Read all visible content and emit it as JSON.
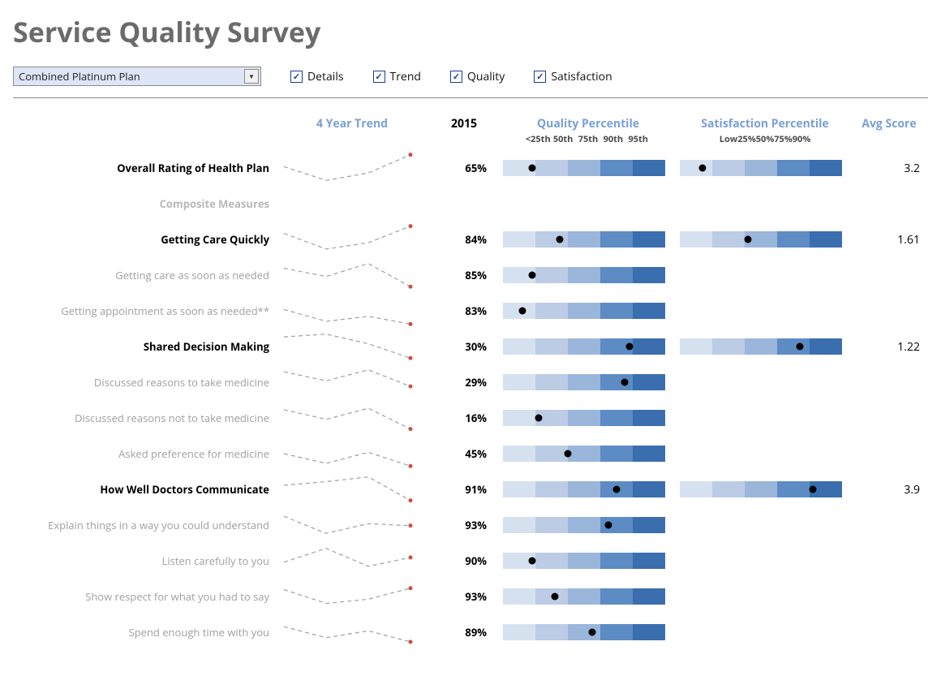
{
  "title": "Service Quality Survey",
  "controls": {
    "plan_selected": "Combined Platinum Plan",
    "checkboxes": [
      {
        "key": "details",
        "label": "Details",
        "checked": true
      },
      {
        "key": "trend",
        "label": "Trend",
        "checked": true
      },
      {
        "key": "quality",
        "label": "Quality",
        "checked": true
      },
      {
        "key": "satisfaction",
        "label": "Satisfaction",
        "checked": true
      }
    ]
  },
  "headers": {
    "trend": "4 Year Trend",
    "year": "2015",
    "quality": "Quality Percentile",
    "satisfaction": "Satisfaction Percentile",
    "avg": "Avg Score",
    "quality_ticks": [
      "<25th",
      "50th",
      "75th",
      "90th",
      "95th"
    ],
    "satisfaction_ticks": [
      "Low",
      "25%",
      "50%",
      "75%",
      "90%"
    ]
  },
  "percentile_colors": [
    "#d6e1f0",
    "#bcccE4",
    "#9bb6db",
    "#5d8cc4",
    "#3a6eae"
  ],
  "dot_color": "#000000",
  "spark_line_color": "#9fa0a1",
  "spark_end_color": "#cc4f3e",
  "rows": [
    {
      "id": "overall",
      "label": "Overall Rating of Health Plan",
      "level": "main",
      "spark": [
        0.55,
        0.05,
        0.32,
        0.98
      ],
      "pct": "65%",
      "quality_dot": 0.18,
      "satisfaction_dot": 0.14,
      "avg": "3.2"
    },
    {
      "id": "composite-hdr",
      "label": "Composite Measures",
      "level": "section"
    },
    {
      "id": "quickly",
      "label": "Getting Care Quickly",
      "level": "main",
      "spark": [
        0.72,
        0.15,
        0.38,
        0.98
      ],
      "pct": "84%",
      "quality_dot": 0.35,
      "satisfaction_dot": 0.42,
      "avg": "1.61"
    },
    {
      "id": "care-needed",
      "label": "Getting care as soon as needed",
      "level": "sub",
      "spark": [
        0.75,
        0.45,
        0.92,
        0.08
      ],
      "pct": "85%",
      "quality_dot": 0.18
    },
    {
      "id": "appt-needed",
      "label": "Getting appointment as soon as needed**",
      "level": "sub",
      "spark": [
        0.55,
        0.12,
        0.3,
        0.02
      ],
      "pct": "83%",
      "quality_dot": 0.12
    },
    {
      "id": "shared",
      "label": "Shared Decision Making",
      "level": "main",
      "spark": [
        0.85,
        0.95,
        0.6,
        0.08
      ],
      "pct": "30%",
      "quality_dot": 0.78,
      "satisfaction_dot": 0.74,
      "avg": "1.22"
    },
    {
      "id": "reasons-take",
      "label": "Discussed reasons to take medicine",
      "level": "sub",
      "spark": [
        0.88,
        0.55,
        0.95,
        0.35
      ],
      "pct": "29%",
      "quality_dot": 0.75
    },
    {
      "id": "reasons-not",
      "label": "Discussed reasons not to take medicine",
      "level": "sub",
      "spark": [
        0.8,
        0.45,
        0.85,
        0.1
      ],
      "pct": "16%",
      "quality_dot": 0.22
    },
    {
      "id": "asked-pref",
      "label": "Asked preference for medicine",
      "level": "sub",
      "spark": [
        0.5,
        0.15,
        0.55,
        0.05
      ],
      "pct": "45%",
      "quality_dot": 0.4
    },
    {
      "id": "doctors",
      "label": "How Well Doctors Communicate",
      "level": "main",
      "spark": [
        0.65,
        0.78,
        0.95,
        0.1
      ],
      "pct": "91%",
      "quality_dot": 0.7,
      "satisfaction_dot": 0.82,
      "avg": "3.9"
    },
    {
      "id": "explain",
      "label": "Explain things in a way you could understand",
      "level": "sub",
      "spark": [
        0.82,
        0.2,
        0.55,
        0.48
      ],
      "pct": "93%",
      "quality_dot": 0.65
    },
    {
      "id": "listen",
      "label": "Listen carefully to you",
      "level": "sub",
      "spark": [
        0.45,
        0.95,
        0.3,
        0.62
      ],
      "pct": "90%",
      "quality_dot": 0.18
    },
    {
      "id": "respect",
      "label": "Show respect for what you had to say",
      "level": "sub",
      "spark": [
        0.75,
        0.25,
        0.4,
        0.8
      ],
      "pct": "93%",
      "quality_dot": 0.32
    },
    {
      "id": "time",
      "label": "Spend enough time with you",
      "level": "sub",
      "spark": [
        0.7,
        0.3,
        0.55,
        0.15
      ],
      "pct": "89%",
      "quality_dot": 0.55
    }
  ]
}
